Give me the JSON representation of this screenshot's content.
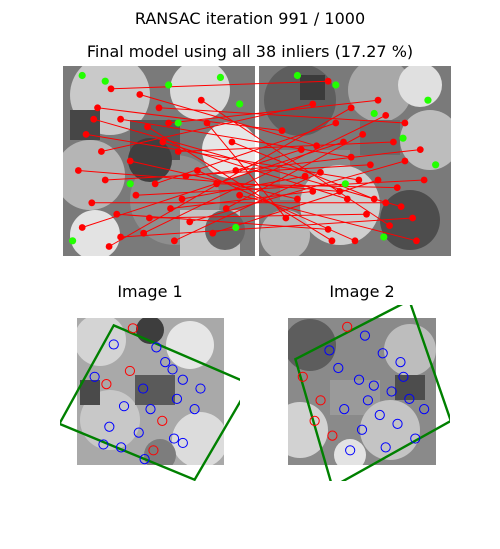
{
  "figure": {
    "suptitle": "RANSAC iteration 991 / 1000",
    "subtitle": "Final model using all 38 inliers (17.27 %)",
    "image1_title": "Image 1",
    "image2_title": "Image 2"
  },
  "chart_data": {
    "type": "scatter",
    "iteration": 991,
    "iterations_total": 1000,
    "inliers": 38,
    "inlier_percent": 17.27,
    "colors": {
      "inlier": "#ff0000",
      "outlier": "#22ff00",
      "circle_unmatched": "#ff0000",
      "circle_matched": "#0000ff",
      "model_box": "#008000",
      "divider": "#ffffff"
    },
    "matches": [
      [
        0.25,
        0.12,
        0.36,
        0.08
      ],
      [
        0.18,
        0.22,
        0.12,
        0.34
      ],
      [
        0.3,
        0.28,
        0.48,
        0.48
      ],
      [
        0.12,
        0.36,
        0.52,
        0.6
      ],
      [
        0.4,
        0.15,
        0.3,
        0.42
      ],
      [
        0.55,
        0.3,
        0.62,
        0.18
      ],
      [
        0.08,
        0.55,
        0.42,
        0.66
      ],
      [
        0.22,
        0.6,
        0.58,
        0.52
      ],
      [
        0.35,
        0.5,
        0.2,
        0.7
      ],
      [
        0.48,
        0.62,
        0.4,
        0.3
      ],
      [
        0.6,
        0.45,
        0.7,
        0.4
      ],
      [
        0.15,
        0.72,
        0.66,
        0.72
      ],
      [
        0.28,
        0.78,
        0.36,
        0.86
      ],
      [
        0.45,
        0.8,
        0.56,
        0.78
      ],
      [
        0.62,
        0.7,
        0.24,
        0.58
      ],
      [
        0.7,
        0.55,
        0.5,
        0.92
      ],
      [
        0.8,
        0.62,
        0.72,
        0.64
      ],
      [
        0.42,
        0.88,
        0.66,
        0.26
      ],
      [
        0.2,
        0.45,
        0.28,
        0.2
      ],
      [
        0.52,
        0.4,
        0.46,
        0.7
      ],
      [
        0.66,
        0.82,
        0.76,
        0.5
      ],
      [
        0.75,
        0.3,
        0.14,
        0.8
      ],
      [
        0.88,
        0.4,
        0.6,
        0.7
      ],
      [
        0.1,
        0.85,
        0.44,
        0.4
      ],
      [
        0.3,
        0.9,
        0.8,
        0.8
      ],
      [
        0.58,
        0.92,
        0.32,
        0.56
      ],
      [
        0.85,
        0.75,
        0.54,
        0.36
      ],
      [
        0.72,
        0.18,
        0.68,
        0.84
      ],
      [
        0.38,
        0.68,
        0.86,
        0.6
      ],
      [
        0.5,
        0.22,
        0.76,
        0.3
      ],
      [
        0.9,
        0.55,
        0.22,
        0.44
      ],
      [
        0.24,
        0.95,
        0.48,
        0.22
      ],
      [
        0.64,
        0.58,
        0.84,
        0.44
      ],
      [
        0.44,
        0.32,
        0.38,
        0.92
      ],
      [
        0.78,
        0.88,
        0.62,
        0.6
      ],
      [
        0.16,
        0.28,
        0.74,
        0.74
      ],
      [
        0.56,
        0.75,
        0.28,
        0.66
      ],
      [
        0.92,
        0.68,
        0.82,
        0.92
      ]
    ],
    "outliers_left": [
      [
        0.1,
        0.05
      ],
      [
        0.22,
        0.08
      ],
      [
        0.55,
        0.1
      ],
      [
        0.82,
        0.06
      ],
      [
        0.92,
        0.2
      ],
      [
        0.05,
        0.92
      ],
      [
        0.6,
        0.3
      ],
      [
        0.35,
        0.62
      ],
      [
        0.9,
        0.85
      ]
    ],
    "outliers_right": [
      [
        0.2,
        0.05
      ],
      [
        0.4,
        0.1
      ],
      [
        0.6,
        0.25
      ],
      [
        0.88,
        0.18
      ],
      [
        0.75,
        0.38
      ],
      [
        0.92,
        0.52
      ],
      [
        0.45,
        0.62
      ],
      [
        0.65,
        0.9
      ]
    ],
    "model_box_1": [
      [
        0.25,
        0.05
      ],
      [
        1.18,
        0.45
      ],
      [
        0.8,
        1.1
      ],
      [
        -0.12,
        0.72
      ]
    ],
    "model_box_2": [
      [
        0.05,
        0.28
      ],
      [
        0.82,
        -0.12
      ],
      [
        1.1,
        0.7
      ],
      [
        0.3,
        1.15
      ]
    ],
    "keypoints_1": [
      [
        0.38,
        0.07
      ],
      [
        0.25,
        0.18
      ],
      [
        0.54,
        0.2
      ],
      [
        0.65,
        0.35
      ],
      [
        0.72,
        0.42
      ],
      [
        0.2,
        0.45
      ],
      [
        0.45,
        0.48
      ],
      [
        0.68,
        0.55
      ],
      [
        0.32,
        0.6
      ],
      [
        0.8,
        0.62
      ],
      [
        0.58,
        0.7
      ],
      [
        0.22,
        0.74
      ],
      [
        0.42,
        0.78
      ],
      [
        0.66,
        0.82
      ],
      [
        0.3,
        0.88
      ],
      [
        0.52,
        0.9
      ],
      [
        0.72,
        0.85
      ],
      [
        0.46,
        0.96
      ],
      [
        0.12,
        0.4
      ],
      [
        0.6,
        0.3
      ],
      [
        0.36,
        0.36
      ],
      [
        0.84,
        0.48
      ],
      [
        0.5,
        0.62
      ],
      [
        0.18,
        0.86
      ]
    ],
    "keypoints_2": [
      [
        0.4,
        0.06
      ],
      [
        0.52,
        0.12
      ],
      [
        0.28,
        0.22
      ],
      [
        0.64,
        0.24
      ],
      [
        0.76,
        0.3
      ],
      [
        0.1,
        0.4
      ],
      [
        0.48,
        0.42
      ],
      [
        0.58,
        0.46
      ],
      [
        0.7,
        0.5
      ],
      [
        0.82,
        0.55
      ],
      [
        0.22,
        0.56
      ],
      [
        0.38,
        0.62
      ],
      [
        0.62,
        0.66
      ],
      [
        0.74,
        0.72
      ],
      [
        0.5,
        0.76
      ],
      [
        0.3,
        0.8
      ],
      [
        0.86,
        0.82
      ],
      [
        0.66,
        0.88
      ],
      [
        0.42,
        0.9
      ],
      [
        0.92,
        0.62
      ],
      [
        0.18,
        0.7
      ],
      [
        0.54,
        0.56
      ],
      [
        0.78,
        0.4
      ],
      [
        0.34,
        0.34
      ]
    ]
  }
}
